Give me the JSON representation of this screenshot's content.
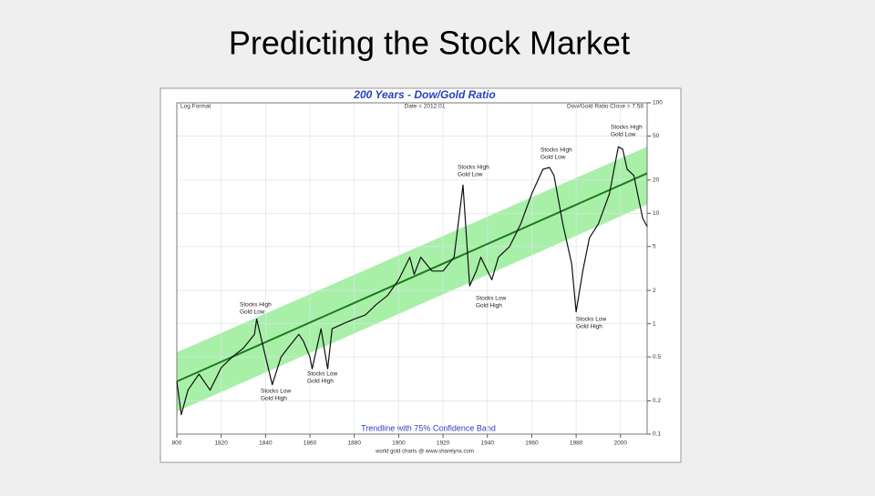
{
  "title": "Predicting the Stock Market",
  "chart_data": {
    "type": "line",
    "title": "200 Years - Dow/Gold Ratio",
    "header_left": "Log Format",
    "header_center": "Date = 2012.01",
    "header_right": "Dow/Gold Ratio Close = 7.58",
    "band_label": "Trendline with 75% Confidence Band",
    "source": "world gold charts @ www.sharelynx.com",
    "log_y": true,
    "grid": true,
    "color": "#111111",
    "x": [
      1800,
      1802,
      1805,
      1810,
      1815,
      1820,
      1825,
      1830,
      1835,
      1836,
      1840,
      1843,
      1847,
      1850,
      1855,
      1857,
      1860,
      1861,
      1865,
      1868,
      1870,
      1875,
      1880,
      1885,
      1890,
      1895,
      1900,
      1905,
      1907,
      1910,
      1915,
      1920,
      1925,
      1929,
      1932,
      1935,
      1937,
      1942,
      1945,
      1950,
      1955,
      1960,
      1965,
      1968,
      1970,
      1974,
      1978,
      1980,
      1983,
      1986,
      1990,
      1995,
      1999,
      2001,
      2003,
      2006,
      2008,
      2010,
      2012
    ],
    "values": [
      0.3,
      0.15,
      0.25,
      0.35,
      0.25,
      0.4,
      0.5,
      0.6,
      0.8,
      1.1,
      0.5,
      0.28,
      0.5,
      0.6,
      0.8,
      0.7,
      0.5,
      0.39,
      0.9,
      0.39,
      0.9,
      1.0,
      1.1,
      1.2,
      1.5,
      1.8,
      2.5,
      4,
      2.8,
      4,
      3,
      3,
      4,
      18,
      2.2,
      3,
      4,
      2.5,
      4,
      5,
      8,
      15,
      25,
      26,
      22,
      8,
      3.5,
      1.28,
      3,
      6,
      8,
      15,
      40,
      38,
      25,
      22,
      14,
      9,
      7.58
    ],
    "trend": {
      "x": [
        1800,
        2012
      ],
      "values": [
        0.3,
        23
      ],
      "color": "#1f7a1f"
    },
    "band": {
      "x": [
        1800,
        2012
      ],
      "upper": [
        0.55,
        40
      ],
      "lower": [
        0.16,
        12
      ],
      "color": "#a8f0a8"
    },
    "annotations": [
      {
        "lines": [
          "Stocks High",
          "Gold Low"
        ]
      },
      {
        "lines": [
          "Stocks Low",
          "Gold High"
        ]
      },
      {
        "lines": [
          "Stocks Low",
          "Gold High"
        ]
      },
      {
        "lines": [
          "Stocks High",
          "Gold Low"
        ]
      },
      {
        "lines": [
          "Stocks Low",
          "Gold High"
        ]
      },
      {
        "lines": [
          "Stocks High",
          "Gold Low"
        ]
      },
      {
        "lines": [
          "Stocks Low",
          "Gold High"
        ]
      },
      {
        "lines": [
          "Stocks High",
          "Gold Low"
        ]
      }
    ],
    "xlim": [
      1800,
      2012
    ],
    "xticks": [
      {
        "value": 1800,
        "label": "800"
      },
      1820,
      1840,
      1860,
      1880,
      1900,
      1920,
      1940,
      1960,
      1980,
      2000
    ],
    "ylim": [
      0.1,
      100
    ],
    "yticks": [
      0.1,
      0.2,
      0.5,
      1,
      2,
      5,
      10,
      20,
      50,
      100
    ]
  }
}
